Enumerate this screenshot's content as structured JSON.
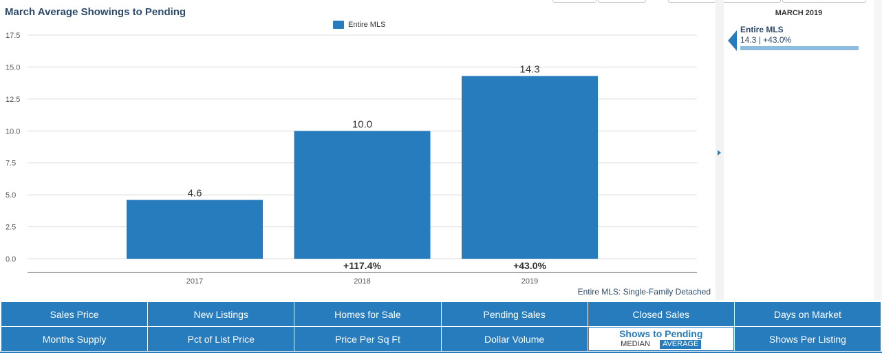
{
  "chart_data": {
    "type": "bar",
    "title": "March Average Showings to Pending",
    "categories": [
      "2017",
      "2018",
      "2019"
    ],
    "series": [
      {
        "name": "Entire MLS",
        "values": [
          4.6,
          10.0,
          14.3
        ],
        "color": "#277cbe"
      }
    ],
    "value_labels": [
      "4.6",
      "10.0",
      "14.3"
    ],
    "change_labels": [
      "",
      "+117.4%",
      "+43.0%"
    ],
    "yticks": [
      "0.0",
      "2.5",
      "5.0",
      "7.5",
      "10.0",
      "12.5",
      "15.0",
      "17.5"
    ],
    "ylim": [
      0,
      17.5
    ],
    "grid": true,
    "legend_position": "top-center",
    "footnote": "Entire MLS: Single-Family Detached"
  },
  "side_panel": {
    "title": "MARCH 2019",
    "entry_name": "Entire MLS",
    "entry_value": "14.3 | +43.0%",
    "bar_fraction": 1.0
  },
  "nav": {
    "row1": [
      "Sales Price",
      "New Listings",
      "Homes for Sale",
      "Pending Sales",
      "Closed Sales",
      "Days on Market"
    ],
    "row2_before": [
      "Months Supply",
      "Pct of List Price",
      "Price Per Sq Ft",
      "Dollar Volume"
    ],
    "active": {
      "label": "Shows to Pending",
      "median": "MEDIAN",
      "average": "AVERAGE"
    },
    "row2_after": [
      "Shows Per Listing"
    ]
  },
  "colors": {
    "accent": "#277cbe",
    "title": "#2b4a6b",
    "grid": "#dcdcdc"
  }
}
